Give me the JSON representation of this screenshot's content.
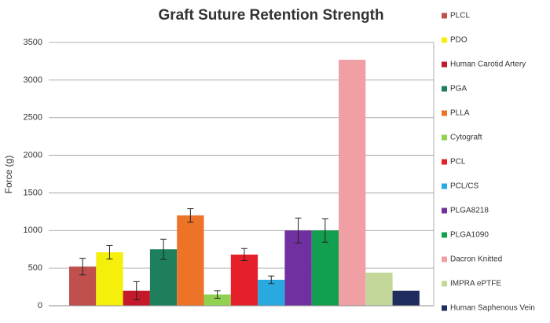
{
  "chart_data": {
    "type": "bar",
    "title": "Graft Suture Retention Strength",
    "y_label": "Force (g)",
    "categories": [
      null
    ],
    "series": [
      {
        "name": "PLCL",
        "color": "#c0504d",
        "values": [
          520
        ],
        "errors": [
          110
        ]
      },
      {
        "name": "PDO",
        "color": "#f5ef0c",
        "values": [
          710
        ],
        "errors": [
          90
        ]
      },
      {
        "name": "Human Carotid Artery",
        "color": "#c4192b",
        "values": [
          200
        ],
        "errors": [
          120
        ]
      },
      {
        "name": "PGA",
        "color": "#1e7f5c",
        "values": [
          750
        ],
        "errors": [
          135
        ]
      },
      {
        "name": "PLLA",
        "color": "#ec7328",
        "values": [
          1200
        ],
        "errors": [
          90
        ]
      },
      {
        "name": "Cytograft",
        "color": "#92d050",
        "values": [
          150
        ],
        "errors": [
          50
        ]
      },
      {
        "name": "PCL",
        "color": "#e5202a",
        "values": [
          680
        ],
        "errors": [
          80
        ]
      },
      {
        "name": "PCL/CS",
        "color": "#2aa9e0",
        "values": [
          345
        ],
        "errors": [
          50
        ]
      },
      {
        "name": "PLGA8218",
        "color": "#7030a0",
        "values": [
          1000
        ],
        "errors": [
          165
        ]
      },
      {
        "name": "PLGA1090",
        "color": "#12a050",
        "values": [
          1000
        ],
        "errors": [
          155
        ]
      },
      {
        "name": "Dacron Knitted",
        "color": "#f0a0a4",
        "values": [
          3270
        ],
        "errors": [
          null
        ]
      },
      {
        "name": "IMPRA ePTFE",
        "color": "#c4d79b",
        "values": [
          440
        ],
        "errors": [
          null
        ]
      },
      {
        "name": "Human Saphenous Vein",
        "color": "#1f2d5e",
        "values": [
          200
        ],
        "errors": [
          null
        ]
      }
    ],
    "ylim": [
      0,
      3500
    ],
    "yticks": [
      0,
      500,
      1000,
      1500,
      2000,
      2500,
      3000,
      3500
    ],
    "grid": true,
    "legend": "right"
  }
}
